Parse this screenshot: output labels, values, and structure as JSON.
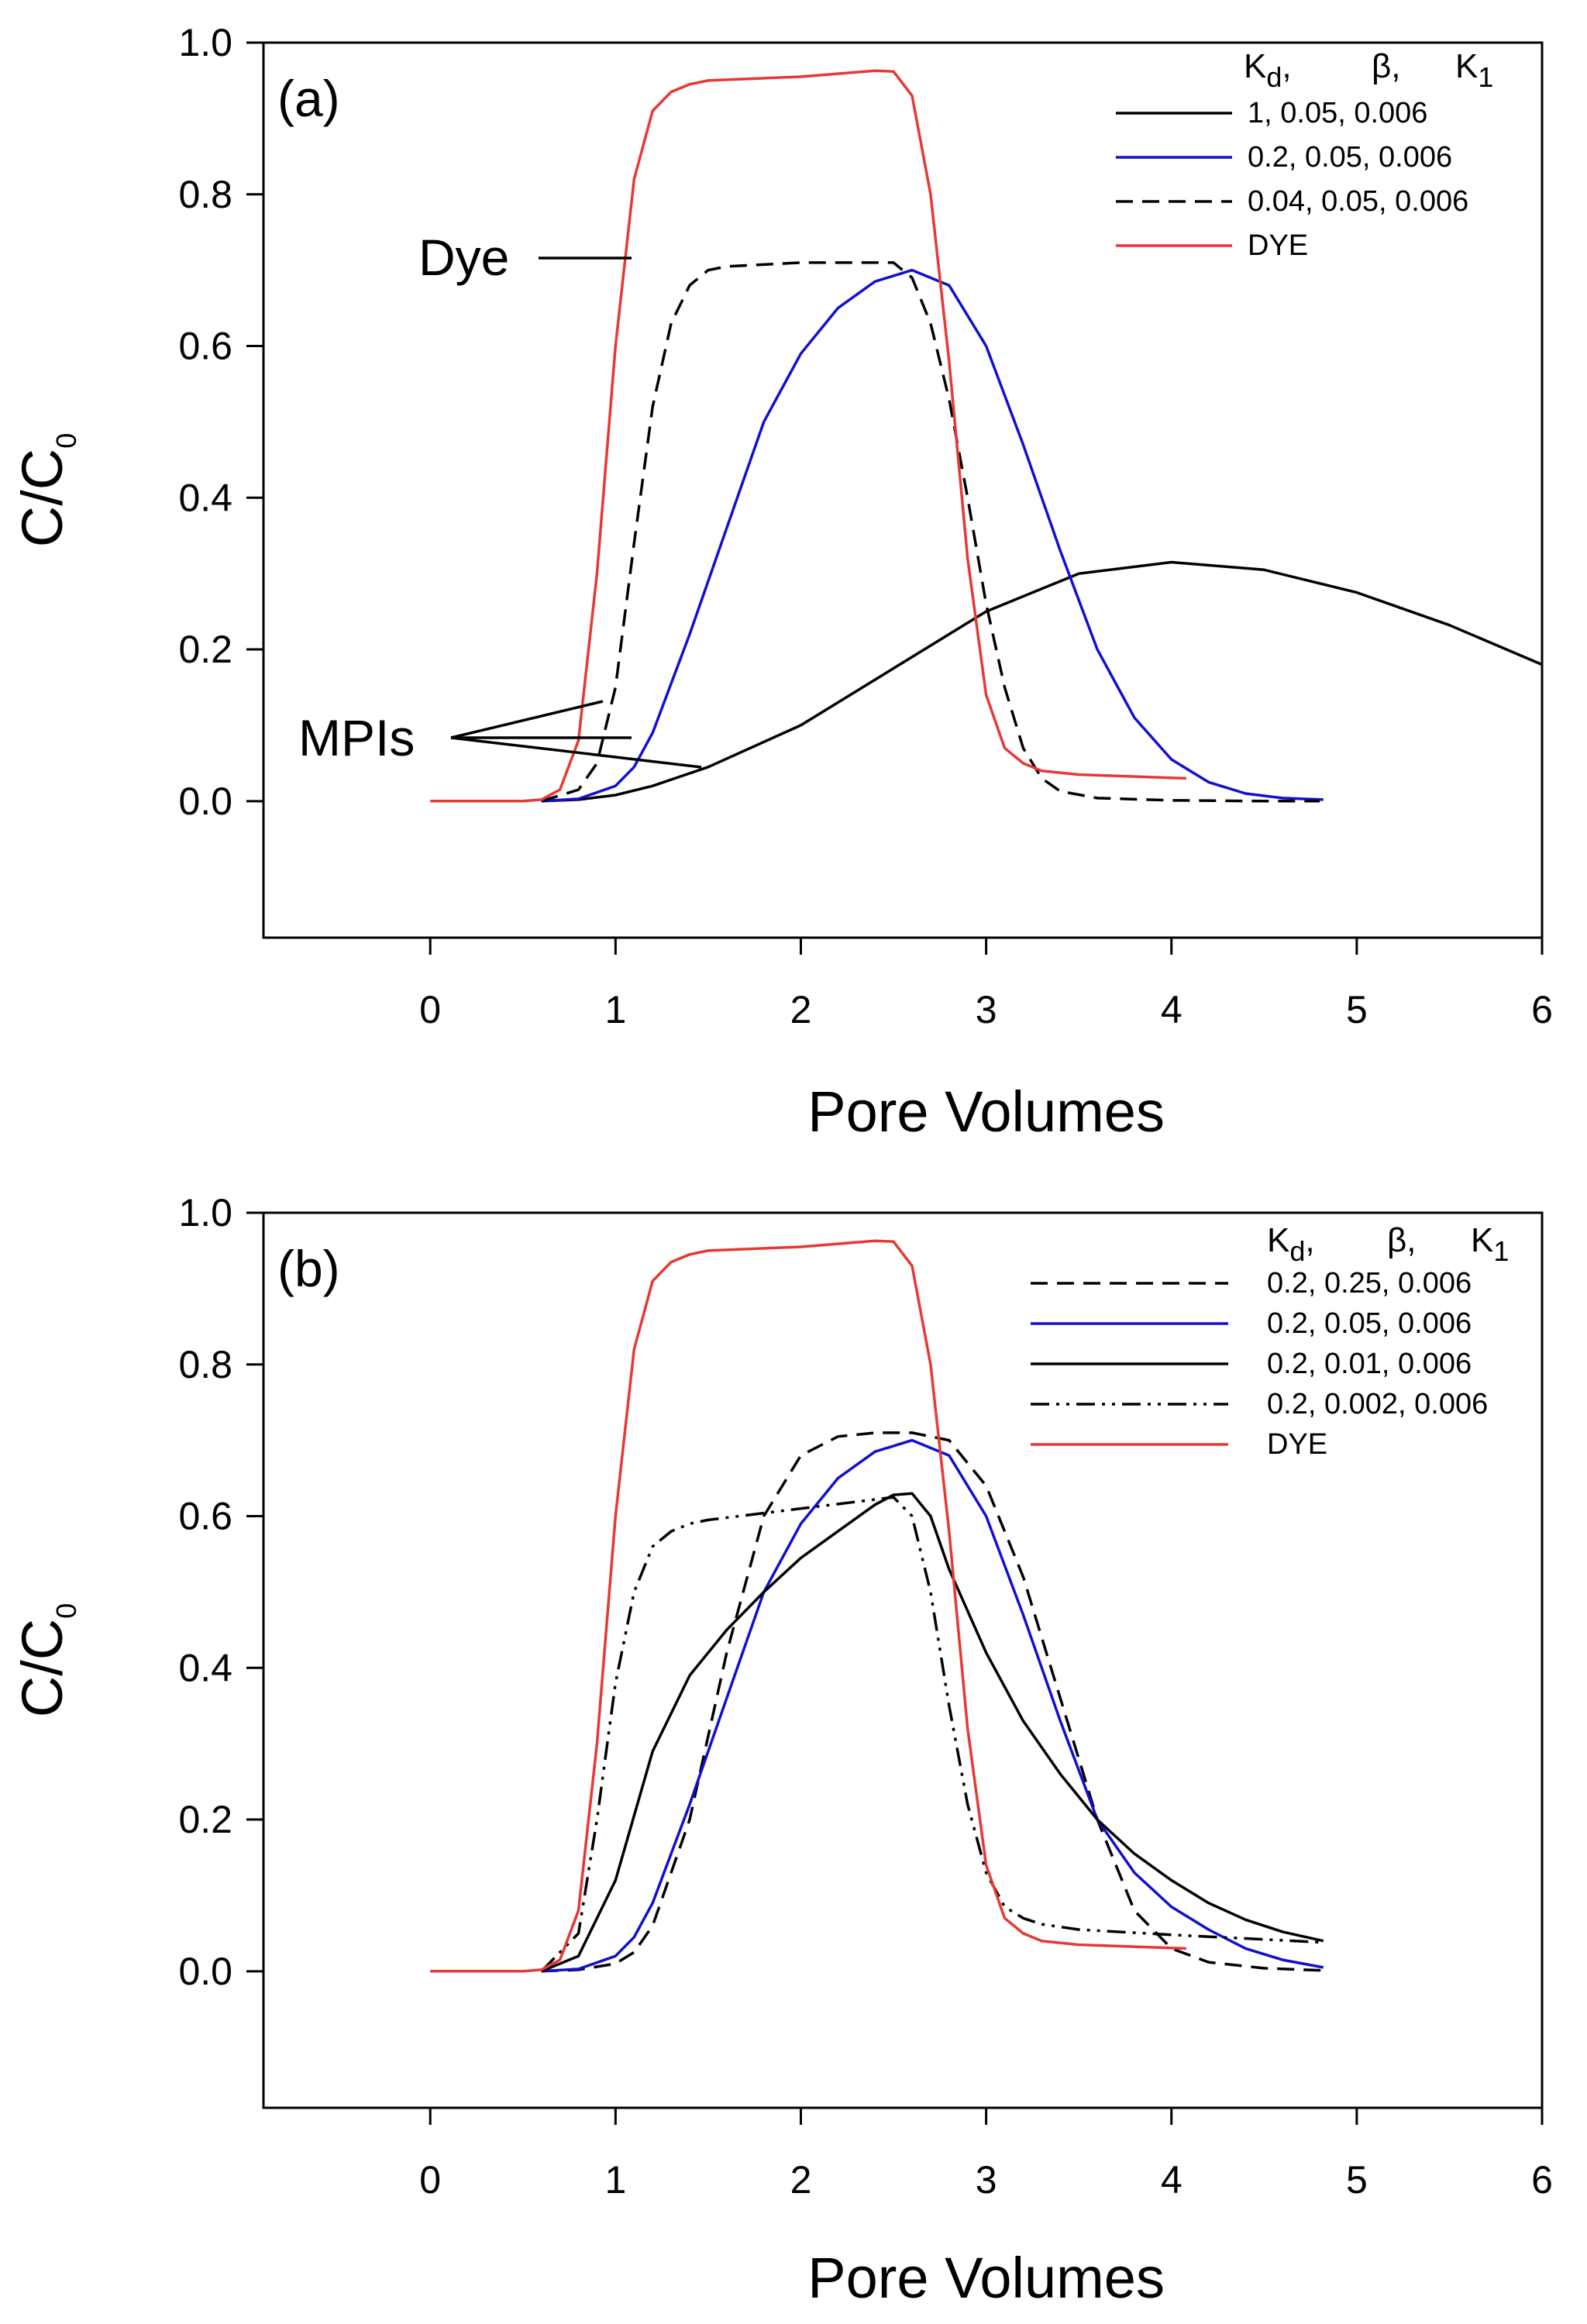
{
  "chart_data": [
    {
      "type": "line",
      "panel_label": "(a)",
      "xlabel": "Pore Volumes",
      "ylabel": "C/C",
      "ylabel_sub": "0",
      "xlim": [
        -0.9,
        6
      ],
      "ylim": [
        -0.18,
        1.0
      ],
      "xticks": [
        "0",
        "1",
        "2",
        "3",
        "4",
        "5",
        "6"
      ],
      "yticks": [
        "0.0",
        "0.2",
        "0.4",
        "0.6",
        "0.8",
        "1.0"
      ],
      "legend_header": {
        "kd": "K",
        "kd_sub": "d",
        "beta": "β,",
        "k1": "K",
        "k1_sub": "1",
        "comma": ","
      },
      "series": [
        {
          "name": "1, 0.05, 0.006",
          "color": "#000000",
          "dash": "solid",
          "x": [
            0.6,
            0.8,
            1.0,
            1.2,
            1.5,
            2.0,
            2.5,
            3.0,
            3.5,
            4.0,
            4.5,
            5.0,
            5.5,
            6.0
          ],
          "y": [
            0.0,
            0.002,
            0.008,
            0.02,
            0.045,
            0.1,
            0.175,
            0.25,
            0.3,
            0.315,
            0.305,
            0.275,
            0.232,
            0.18
          ]
        },
        {
          "name": "0.2, 0.05, 0.006",
          "color": "#1010d0",
          "dash": "solid",
          "x": [
            0.6,
            0.8,
            1.0,
            1.1,
            1.2,
            1.4,
            1.6,
            1.8,
            2.0,
            2.2,
            2.4,
            2.6,
            2.8,
            3.0,
            3.2,
            3.4,
            3.6,
            3.8,
            4.0,
            4.2,
            4.4,
            4.6,
            4.82
          ],
          "y": [
            0.0,
            0.003,
            0.02,
            0.045,
            0.09,
            0.22,
            0.36,
            0.5,
            0.59,
            0.65,
            0.685,
            0.7,
            0.68,
            0.6,
            0.47,
            0.33,
            0.2,
            0.11,
            0.055,
            0.025,
            0.01,
            0.004,
            0.002
          ]
        },
        {
          "name": "0.04, 0.05, 0.006",
          "color": "#000000",
          "dash": "dashed",
          "x": [
            0.6,
            0.8,
            0.9,
            1.0,
            1.1,
            1.2,
            1.3,
            1.4,
            1.5,
            1.6,
            2.0,
            2.5,
            2.6,
            2.7,
            2.8,
            2.9,
            3.0,
            3.1,
            3.2,
            3.3,
            3.4,
            3.6,
            4.0,
            4.5,
            4.8
          ],
          "y": [
            0.0,
            0.015,
            0.05,
            0.15,
            0.34,
            0.52,
            0.63,
            0.68,
            0.7,
            0.705,
            0.71,
            0.71,
            0.69,
            0.63,
            0.53,
            0.4,
            0.26,
            0.15,
            0.07,
            0.03,
            0.013,
            0.004,
            0.001,
            0.0,
            0.0
          ]
        },
        {
          "name": "DYE",
          "color": "#e53935",
          "dash": "solid",
          "x": [
            0.0,
            0.5,
            0.6,
            0.7,
            0.8,
            0.9,
            1.0,
            1.1,
            1.2,
            1.3,
            1.4,
            1.5,
            2.0,
            2.4,
            2.5,
            2.6,
            2.7,
            2.8,
            2.9,
            3.0,
            3.1,
            3.2,
            3.3,
            3.5,
            4.08
          ],
          "y": [
            0.0,
            0.0,
            0.002,
            0.015,
            0.08,
            0.3,
            0.6,
            0.82,
            0.91,
            0.935,
            0.945,
            0.95,
            0.955,
            0.963,
            0.962,
            0.93,
            0.8,
            0.58,
            0.32,
            0.14,
            0.07,
            0.05,
            0.04,
            0.035,
            0.03
          ]
        }
      ],
      "annotations": [
        {
          "text": "Dye"
        },
        {
          "text": "MPIs"
        }
      ]
    },
    {
      "type": "line",
      "panel_label": "(b)",
      "xlabel": "Pore Volumes",
      "ylabel": "C/C",
      "ylabel_sub": "0",
      "xlim": [
        -0.9,
        6
      ],
      "ylim": [
        -0.18,
        1.0
      ],
      "xticks": [
        "0",
        "1",
        "2",
        "3",
        "4",
        "5",
        "6"
      ],
      "yticks": [
        "0.0",
        "0.2",
        "0.4",
        "0.6",
        "0.8",
        "1.0"
      ],
      "legend_header": {
        "kd": "K",
        "kd_sub": "d",
        "beta": "β,",
        "k1": "K",
        "k1_sub": "1",
        "comma": ","
      },
      "series": [
        {
          "name": "0.2, 0.25, 0.006",
          "color": "#000000",
          "dash": "dashed",
          "x": [
            0.6,
            0.8,
            1.0,
            1.1,
            1.2,
            1.4,
            1.6,
            1.8,
            2.0,
            2.2,
            2.4,
            2.6,
            2.8,
            3.0,
            3.2,
            3.4,
            3.6,
            3.8,
            4.0,
            4.2,
            4.5,
            4.82
          ],
          "y": [
            0.0,
            0.002,
            0.01,
            0.025,
            0.06,
            0.2,
            0.42,
            0.6,
            0.68,
            0.705,
            0.71,
            0.71,
            0.7,
            0.64,
            0.52,
            0.36,
            0.2,
            0.08,
            0.03,
            0.012,
            0.004,
            0.001
          ]
        },
        {
          "name": "0.2, 0.05, 0.006",
          "color": "#1010d0",
          "dash": "solid",
          "x": [
            0.6,
            0.8,
            1.0,
            1.1,
            1.2,
            1.4,
            1.6,
            1.8,
            2.0,
            2.2,
            2.4,
            2.6,
            2.8,
            3.0,
            3.2,
            3.4,
            3.6,
            3.8,
            4.0,
            4.2,
            4.4,
            4.6,
            4.82
          ],
          "y": [
            0.0,
            0.003,
            0.02,
            0.045,
            0.09,
            0.22,
            0.36,
            0.5,
            0.59,
            0.65,
            0.685,
            0.7,
            0.68,
            0.6,
            0.47,
            0.33,
            0.2,
            0.13,
            0.085,
            0.055,
            0.03,
            0.015,
            0.005
          ]
        },
        {
          "name": "0.2, 0.01, 0.006",
          "color": "#000000",
          "dash": "solid",
          "x": [
            0.6,
            0.8,
            1.0,
            1.2,
            1.4,
            1.6,
            1.8,
            2.0,
            2.2,
            2.4,
            2.5,
            2.6,
            2.7,
            2.8,
            3.0,
            3.2,
            3.4,
            3.6,
            3.8,
            4.0,
            4.2,
            4.4,
            4.6,
            4.82
          ],
          "y": [
            0.0,
            0.02,
            0.12,
            0.29,
            0.39,
            0.45,
            0.5,
            0.545,
            0.58,
            0.615,
            0.628,
            0.63,
            0.6,
            0.53,
            0.42,
            0.33,
            0.26,
            0.2,
            0.155,
            0.12,
            0.09,
            0.068,
            0.052,
            0.04
          ]
        },
        {
          "name": "0.2, 0.002, 0.006",
          "color": "#000000",
          "dash": "dashdotdot",
          "x": [
            0.6,
            0.8,
            0.9,
            1.0,
            1.1,
            1.2,
            1.3,
            1.4,
            1.5,
            2.0,
            2.5,
            2.6,
            2.7,
            2.8,
            2.9,
            3.0,
            3.1,
            3.2,
            3.3,
            3.5,
            4.0,
            4.5,
            4.82
          ],
          "y": [
            0.0,
            0.05,
            0.2,
            0.38,
            0.5,
            0.56,
            0.58,
            0.59,
            0.595,
            0.61,
            0.625,
            0.6,
            0.5,
            0.35,
            0.22,
            0.13,
            0.085,
            0.07,
            0.062,
            0.055,
            0.048,
            0.042,
            0.038
          ]
        },
        {
          "name": "DYE",
          "color": "#e53935",
          "dash": "solid",
          "x": [
            0.0,
            0.5,
            0.6,
            0.7,
            0.8,
            0.9,
            1.0,
            1.1,
            1.2,
            1.3,
            1.4,
            1.5,
            2.0,
            2.4,
            2.5,
            2.6,
            2.7,
            2.8,
            2.9,
            3.0,
            3.1,
            3.2,
            3.3,
            3.5,
            4.08
          ],
          "y": [
            0.0,
            0.0,
            0.002,
            0.015,
            0.08,
            0.3,
            0.6,
            0.82,
            0.91,
            0.935,
            0.945,
            0.95,
            0.955,
            0.963,
            0.962,
            0.93,
            0.8,
            0.58,
            0.32,
            0.14,
            0.07,
            0.05,
            0.04,
            0.035,
            0.03
          ]
        }
      ]
    }
  ]
}
